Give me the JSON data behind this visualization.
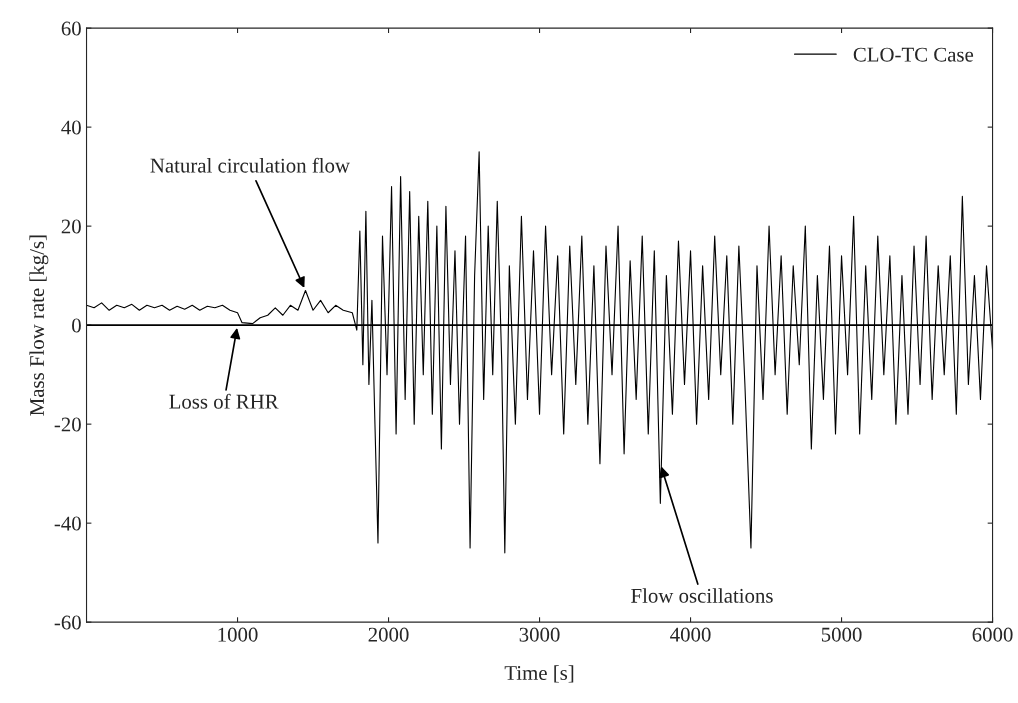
{
  "chart_data": {
    "type": "line",
    "xlabel": "Time [s]",
    "ylabel": "Mass Flow rate [kg/s]",
    "xlim": [
      0,
      6000
    ],
    "xticks": [
      1000,
      2000,
      3000,
      4000,
      5000,
      6000
    ],
    "ylim": [
      -60,
      60
    ],
    "yticks": [
      -60,
      -40,
      -20,
      0,
      20,
      40,
      60
    ],
    "legend": "top right",
    "grid": false,
    "ref_lines": [
      {
        "axis": "y",
        "value": 0,
        "color": "#000000"
      }
    ],
    "annotations": [
      {
        "text": "Natural circulation flow",
        "x": 1450,
        "y": 7
      },
      {
        "text": "Loss of RHR",
        "x": 1000,
        "y": 0
      },
      {
        "text": "Flow oscillations",
        "x": 3800,
        "y": -28
      }
    ],
    "series": [
      {
        "name": "CLO-TC Case",
        "color": "#000000",
        "x": [
          0,
          50,
          100,
          150,
          200,
          250,
          300,
          350,
          400,
          450,
          500,
          550,
          600,
          650,
          700,
          750,
          800,
          850,
          900,
          950,
          1000,
          1030,
          1100,
          1150,
          1200,
          1250,
          1300,
          1350,
          1400,
          1450,
          1500,
          1550,
          1600,
          1650,
          1700,
          1760,
          1790,
          1810,
          1830,
          1850,
          1870,
          1890,
          1910,
          1930,
          1960,
          1990,
          2020,
          2050,
          2080,
          2110,
          2140,
          2170,
          2200,
          2230,
          2260,
          2290,
          2320,
          2350,
          2380,
          2410,
          2440,
          2470,
          2510,
          2540,
          2570,
          2600,
          2630,
          2660,
          2690,
          2720,
          2750,
          2770,
          2800,
          2840,
          2880,
          2920,
          2960,
          3000,
          3040,
          3080,
          3120,
          3160,
          3200,
          3240,
          3280,
          3320,
          3360,
          3400,
          3440,
          3480,
          3520,
          3560,
          3600,
          3640,
          3680,
          3720,
          3760,
          3800,
          3840,
          3880,
          3920,
          3960,
          4000,
          4040,
          4080,
          4120,
          4160,
          4200,
          4240,
          4280,
          4320,
          4360,
          4400,
          4440,
          4480,
          4520,
          4560,
          4600,
          4640,
          4680,
          4720,
          4760,
          4800,
          4840,
          4880,
          4920,
          4960,
          5000,
          5040,
          5080,
          5120,
          5160,
          5200,
          5240,
          5280,
          5320,
          5360,
          5400,
          5440,
          5480,
          5520,
          5560,
          5600,
          5640,
          5680,
          5720,
          5760,
          5800,
          5840,
          5880,
          5920,
          5960,
          6000
        ],
        "values": [
          4,
          3.5,
          4.5,
          3,
          4,
          3.5,
          4.2,
          3,
          4,
          3.5,
          4,
          3,
          3.8,
          3.2,
          4,
          3,
          3.8,
          3.5,
          4,
          3,
          2.5,
          0.5,
          0.3,
          1.5,
          2,
          3.5,
          2,
          4,
          3,
          7,
          3,
          5,
          2.5,
          4,
          3,
          2.5,
          -1,
          19,
          -8,
          23,
          -12,
          5,
          -20,
          -44,
          18,
          -10,
          28,
          -22,
          30,
          -15,
          27,
          -20,
          22,
          -10,
          25,
          -18,
          20,
          -25,
          24,
          -12,
          15,
          -20,
          18,
          -45,
          10,
          35,
          -15,
          20,
          -10,
          25,
          -8,
          -46,
          12,
          -20,
          22,
          -15,
          15,
          -18,
          20,
          -10,
          14,
          -22,
          16,
          -12,
          18,
          -20,
          12,
          -28,
          16,
          -10,
          20,
          -26,
          13,
          -15,
          18,
          -22,
          15,
          -36,
          10,
          -18,
          17,
          -12,
          15,
          -20,
          12,
          -15,
          18,
          -10,
          14,
          -20,
          16,
          -12,
          -45,
          12,
          -15,
          20,
          -10,
          14,
          -18,
          12,
          -8,
          20,
          -25,
          10,
          -15,
          16,
          -22,
          14,
          -10,
          22,
          -22,
          12,
          -15,
          18,
          -10,
          14,
          -20,
          10,
          -18,
          16,
          -12,
          18,
          -15,
          12,
          -10,
          14,
          -18,
          26,
          -12,
          10,
          -15,
          12,
          -5
        ]
      }
    ]
  }
}
